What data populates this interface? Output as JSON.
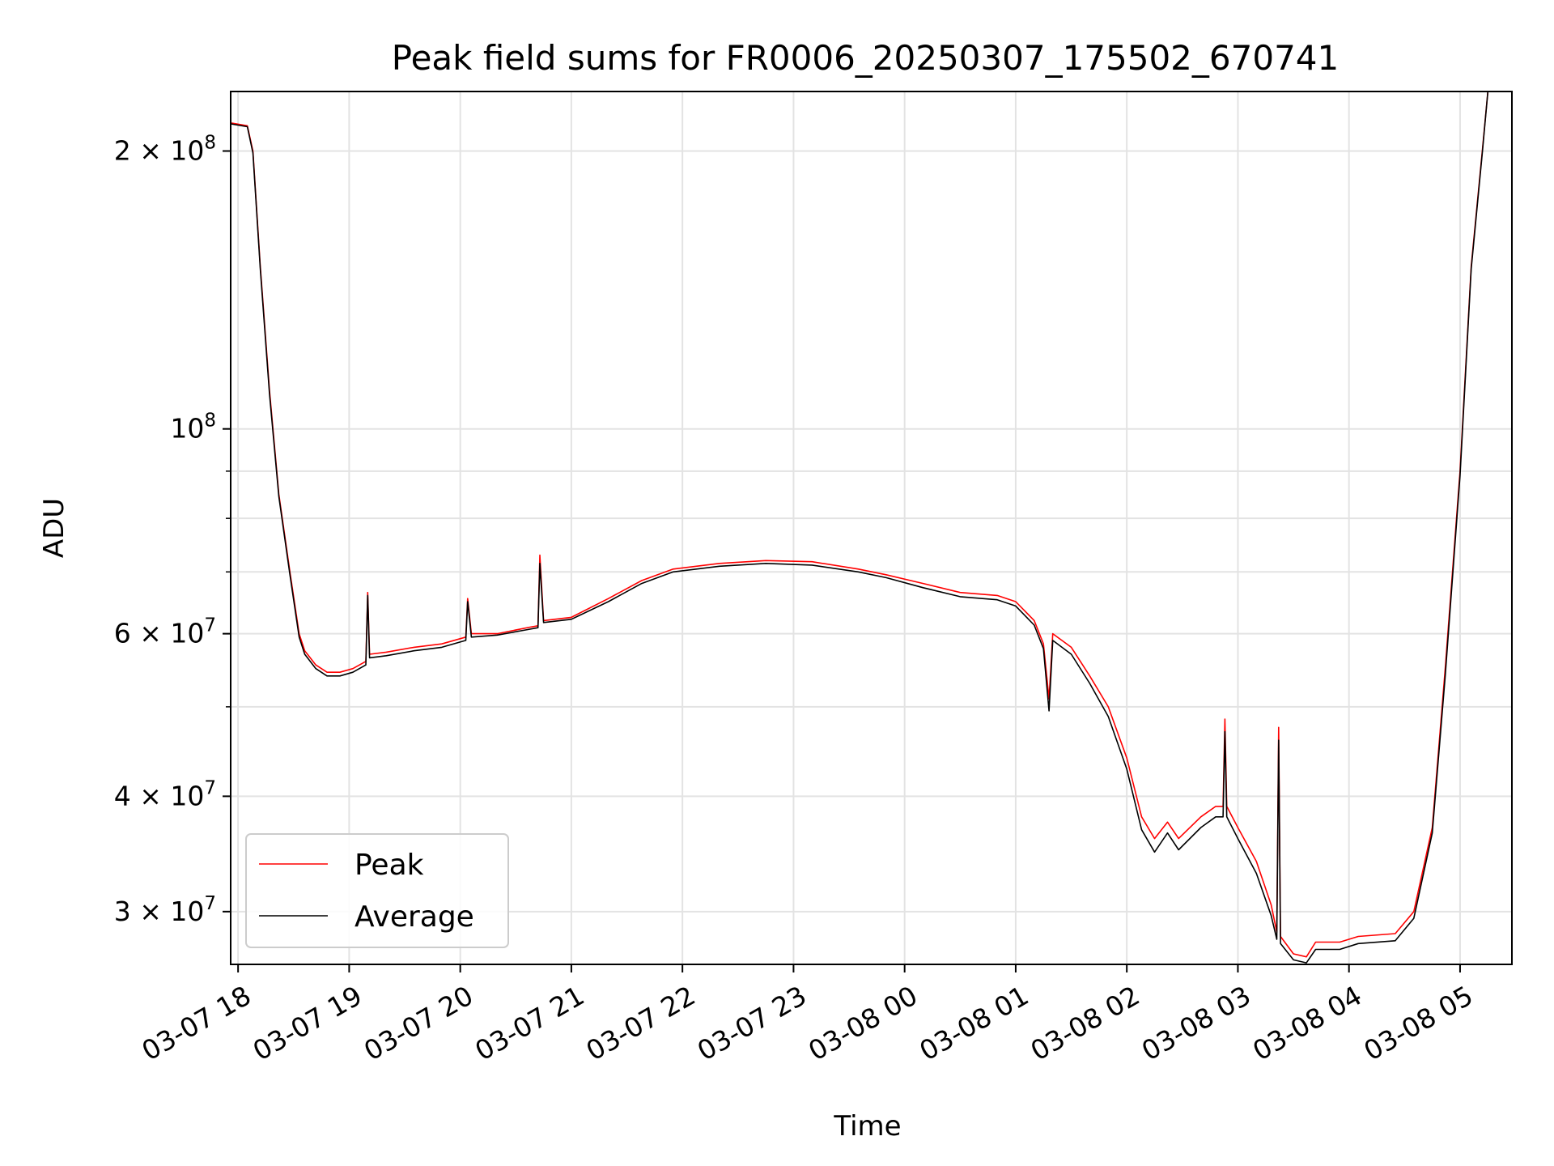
{
  "chart_data": {
    "type": "line",
    "title": "Peak field sums for FR0006_20250307_175502_670741",
    "xlabel": "Time",
    "ylabel": "ADU",
    "yscale": "log",
    "grid": true,
    "legend_position": "lower-left",
    "xlim": [
      "2025-03-07 17:56",
      "2025-03-08 05:28"
    ],
    "ylim": [
      26300000,
      232000000
    ],
    "x_ticks": [
      {
        "t": "2025-03-07 18:00",
        "label": "03-07 18"
      },
      {
        "t": "2025-03-07 19:00",
        "label": "03-07 19"
      },
      {
        "t": "2025-03-07 20:00",
        "label": "03-07 20"
      },
      {
        "t": "2025-03-07 21:00",
        "label": "03-07 21"
      },
      {
        "t": "2025-03-07 22:00",
        "label": "03-07 22"
      },
      {
        "t": "2025-03-07 23:00",
        "label": "03-07 23"
      },
      {
        "t": "2025-03-08 00:00",
        "label": "03-08 00"
      },
      {
        "t": "2025-03-08 01:00",
        "label": "03-08 01"
      },
      {
        "t": "2025-03-08 02:00",
        "label": "03-08 02"
      },
      {
        "t": "2025-03-08 03:00",
        "label": "03-08 03"
      },
      {
        "t": "2025-03-08 04:00",
        "label": "03-08 04"
      },
      {
        "t": "2025-03-08 05:00",
        "label": "03-08 05"
      }
    ],
    "y_ticks": [
      {
        "value": 30000000,
        "base": "3 × 10",
        "exp": "7"
      },
      {
        "value": 40000000,
        "base": "4 × 10",
        "exp": "7"
      },
      {
        "value": 60000000,
        "base": "6 × 10",
        "exp": "7"
      },
      {
        "value": 100000000,
        "base": "10",
        "exp": "8"
      },
      {
        "value": 200000000,
        "base": "2 × 10",
        "exp": "8"
      }
    ],
    "y_minor_ticks": [
      50000000,
      70000000,
      80000000,
      90000000
    ],
    "series": [
      {
        "name": "Peak",
        "color": "#ff0000",
        "points": [
          [
            "2025-03-07 17:56",
            214500000
          ],
          [
            "2025-03-07 18:05",
            213000000
          ],
          [
            "2025-03-07 18:08",
            200000000
          ],
          [
            "2025-03-07 18:12",
            150000000
          ],
          [
            "2025-03-07 18:17",
            110000000
          ],
          [
            "2025-03-07 18:22",
            85000000
          ],
          [
            "2025-03-07 18:28",
            70000000
          ],
          [
            "2025-03-07 18:33",
            60000000
          ],
          [
            "2025-03-07 18:36",
            57500000
          ],
          [
            "2025-03-07 18:42",
            55500000
          ],
          [
            "2025-03-07 18:48",
            54500000
          ],
          [
            "2025-03-07 18:55",
            54500000
          ],
          [
            "2025-03-07 19:02",
            55000000
          ],
          [
            "2025-03-07 19:09",
            56000000
          ],
          [
            "2025-03-07 19:10",
            66500000
          ],
          [
            "2025-03-07 19:11",
            57000000
          ],
          [
            "2025-03-07 19:20",
            57300000
          ],
          [
            "2025-03-07 19:35",
            58000000
          ],
          [
            "2025-03-07 19:50",
            58500000
          ],
          [
            "2025-03-07 20:03",
            59500000
          ],
          [
            "2025-03-07 20:04",
            65500000
          ],
          [
            "2025-03-07 20:06",
            60000000
          ],
          [
            "2025-03-07 20:20",
            60000000
          ],
          [
            "2025-03-07 20:38",
            61000000
          ],
          [
            "2025-03-07 20:42",
            61200000
          ],
          [
            "2025-03-07 20:43",
            73000000
          ],
          [
            "2025-03-07 20:45",
            62000000
          ],
          [
            "2025-03-07 21:00",
            62500000
          ],
          [
            "2025-03-07 21:20",
            65500000
          ],
          [
            "2025-03-07 21:38",
            68500000
          ],
          [
            "2025-03-07 21:55",
            70500000
          ],
          [
            "2025-03-07 22:20",
            71500000
          ],
          [
            "2025-03-07 22:45",
            72000000
          ],
          [
            "2025-03-07 23:10",
            71800000
          ],
          [
            "2025-03-07 23:35",
            70500000
          ],
          [
            "2025-03-07 23:50",
            69500000
          ],
          [
            "2025-03-08 00:10",
            68000000
          ],
          [
            "2025-03-08 00:30",
            66500000
          ],
          [
            "2025-03-08 00:50",
            66000000
          ],
          [
            "2025-03-08 01:00",
            65000000
          ],
          [
            "2025-03-08 01:10",
            62000000
          ],
          [
            "2025-03-08 01:15",
            58500000
          ],
          [
            "2025-03-08 01:18",
            51000000
          ],
          [
            "2025-03-08 01:20",
            60000000
          ],
          [
            "2025-03-08 01:30",
            58000000
          ],
          [
            "2025-03-08 01:40",
            54000000
          ],
          [
            "2025-03-08 01:50",
            50000000
          ],
          [
            "2025-03-08 02:00",
            44000000
          ],
          [
            "2025-03-08 02:08",
            38000000
          ],
          [
            "2025-03-08 02:15",
            36000000
          ],
          [
            "2025-03-08 02:22",
            37500000
          ],
          [
            "2025-03-08 02:28",
            36000000
          ],
          [
            "2025-03-08 02:40",
            38000000
          ],
          [
            "2025-03-08 02:48",
            39000000
          ],
          [
            "2025-03-08 02:52",
            39000000
          ],
          [
            "2025-03-08 02:53",
            48500000
          ],
          [
            "2025-03-08 02:54",
            39000000
          ],
          [
            "2025-03-08 03:00",
            37000000
          ],
          [
            "2025-03-08 03:10",
            34000000
          ],
          [
            "2025-03-08 03:18",
            30500000
          ],
          [
            "2025-03-08 03:21",
            28500000
          ],
          [
            "2025-03-08 03:22",
            47500000
          ],
          [
            "2025-03-08 03:23",
            28200000
          ],
          [
            "2025-03-08 03:30",
            27000000
          ],
          [
            "2025-03-08 03:37",
            26800000
          ],
          [
            "2025-03-08 03:42",
            27800000
          ],
          [
            "2025-03-08 03:55",
            27800000
          ],
          [
            "2025-03-08 04:05",
            28200000
          ],
          [
            "2025-03-08 04:25",
            28400000
          ],
          [
            "2025-03-08 04:35",
            30000000
          ],
          [
            "2025-03-08 04:45",
            37000000
          ],
          [
            "2025-03-08 04:52",
            55000000
          ],
          [
            "2025-03-08 05:00",
            90000000
          ],
          [
            "2025-03-08 05:06",
            150000000
          ],
          [
            "2025-03-08 05:12",
            200000000
          ],
          [
            "2025-03-08 05:15",
            232000000
          ]
        ]
      },
      {
        "name": "Average",
        "color": "#000000",
        "points": [
          [
            "2025-03-07 17:56",
            214000000
          ],
          [
            "2025-03-07 18:05",
            212500000
          ],
          [
            "2025-03-07 18:08",
            199000000
          ],
          [
            "2025-03-07 18:12",
            149000000
          ],
          [
            "2025-03-07 18:17",
            109000000
          ],
          [
            "2025-03-07 18:22",
            84500000
          ],
          [
            "2025-03-07 18:28",
            69500000
          ],
          [
            "2025-03-07 18:33",
            59500000
          ],
          [
            "2025-03-07 18:36",
            57000000
          ],
          [
            "2025-03-07 18:42",
            55000000
          ],
          [
            "2025-03-07 18:48",
            54000000
          ],
          [
            "2025-03-07 18:55",
            54000000
          ],
          [
            "2025-03-07 19:02",
            54500000
          ],
          [
            "2025-03-07 19:09",
            55500000
          ],
          [
            "2025-03-07 19:10",
            66000000
          ],
          [
            "2025-03-07 19:11",
            56500000
          ],
          [
            "2025-03-07 19:20",
            56800000
          ],
          [
            "2025-03-07 19:35",
            57500000
          ],
          [
            "2025-03-07 19:50",
            58000000
          ],
          [
            "2025-03-07 20:03",
            59000000
          ],
          [
            "2025-03-07 20:04",
            65000000
          ],
          [
            "2025-03-07 20:06",
            59500000
          ],
          [
            "2025-03-07 20:20",
            59800000
          ],
          [
            "2025-03-07 20:38",
            60700000
          ],
          [
            "2025-03-07 20:42",
            60900000
          ],
          [
            "2025-03-07 20:43",
            71500000
          ],
          [
            "2025-03-07 20:45",
            61700000
          ],
          [
            "2025-03-07 21:00",
            62200000
          ],
          [
            "2025-03-07 21:20",
            65000000
          ],
          [
            "2025-03-07 21:38",
            68000000
          ],
          [
            "2025-03-07 21:55",
            70000000
          ],
          [
            "2025-03-07 22:20",
            71000000
          ],
          [
            "2025-03-07 22:45",
            71500000
          ],
          [
            "2025-03-07 23:10",
            71200000
          ],
          [
            "2025-03-07 23:35",
            70000000
          ],
          [
            "2025-03-07 23:50",
            69000000
          ],
          [
            "2025-03-08 00:10",
            67300000
          ],
          [
            "2025-03-08 00:30",
            65800000
          ],
          [
            "2025-03-08 00:50",
            65300000
          ],
          [
            "2025-03-08 01:00",
            64300000
          ],
          [
            "2025-03-08 01:10",
            61300000
          ],
          [
            "2025-03-08 01:15",
            57800000
          ],
          [
            "2025-03-08 01:18",
            49500000
          ],
          [
            "2025-03-08 01:20",
            59000000
          ],
          [
            "2025-03-08 01:30",
            57000000
          ],
          [
            "2025-03-08 01:40",
            53000000
          ],
          [
            "2025-03-08 01:50",
            48800000
          ],
          [
            "2025-03-08 02:00",
            42800000
          ],
          [
            "2025-03-08 02:08",
            36800000
          ],
          [
            "2025-03-08 02:15",
            34800000
          ],
          [
            "2025-03-08 02:22",
            36500000
          ],
          [
            "2025-03-08 02:28",
            35000000
          ],
          [
            "2025-03-08 02:40",
            37000000
          ],
          [
            "2025-03-08 02:48",
            38000000
          ],
          [
            "2025-03-08 02:52",
            38000000
          ],
          [
            "2025-03-08 02:53",
            47000000
          ],
          [
            "2025-03-08 02:54",
            38000000
          ],
          [
            "2025-03-08 03:00",
            36000000
          ],
          [
            "2025-03-08 03:10",
            33000000
          ],
          [
            "2025-03-08 03:18",
            29700000
          ],
          [
            "2025-03-08 03:21",
            28000000
          ],
          [
            "2025-03-08 03:22",
            46000000
          ],
          [
            "2025-03-08 03:23",
            27700000
          ],
          [
            "2025-03-08 03:30",
            26600000
          ],
          [
            "2025-03-08 03:37",
            26400000
          ],
          [
            "2025-03-08 03:42",
            27300000
          ],
          [
            "2025-03-08 03:55",
            27300000
          ],
          [
            "2025-03-08 04:05",
            27700000
          ],
          [
            "2025-03-08 04:25",
            27900000
          ],
          [
            "2025-03-08 04:35",
            29500000
          ],
          [
            "2025-03-08 04:45",
            36500000
          ],
          [
            "2025-03-08 04:52",
            54000000
          ],
          [
            "2025-03-08 05:00",
            89000000
          ],
          [
            "2025-03-08 05:06",
            149000000
          ],
          [
            "2025-03-08 05:12",
            199000000
          ],
          [
            "2025-03-08 05:15",
            232000000
          ]
        ]
      }
    ]
  }
}
